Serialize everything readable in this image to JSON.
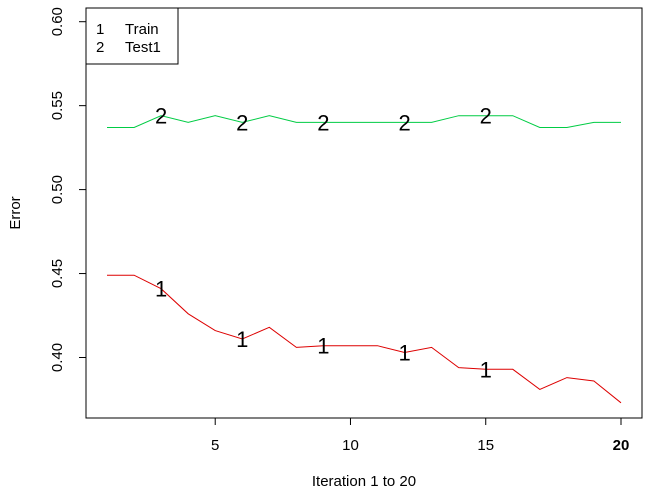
{
  "chart_data": {
    "type": "line",
    "title": "",
    "xlabel": "Iteration 1 to 20",
    "ylabel": "Error",
    "xlim": [
      1,
      20
    ],
    "ylim": [
      0.37,
      0.6
    ],
    "x": [
      1,
      2,
      3,
      4,
      5,
      6,
      7,
      8,
      9,
      10,
      11,
      12,
      13,
      14,
      15,
      16,
      17,
      18,
      19,
      20
    ],
    "x_ticks": [
      {
        "value": 5,
        "label": "5",
        "bold": false
      },
      {
        "value": 10,
        "label": "10",
        "bold": false
      },
      {
        "value": 15,
        "label": "15",
        "bold": false
      },
      {
        "value": 20,
        "label": "20",
        "bold": true
      }
    ],
    "y_ticks": [
      {
        "value": 0.4,
        "label": "0.40"
      },
      {
        "value": 0.45,
        "label": "0.45"
      },
      {
        "value": 0.5,
        "label": "0.50"
      },
      {
        "value": 0.55,
        "label": "0.55"
      },
      {
        "value": 0.6,
        "label": "0.60"
      }
    ],
    "series": [
      {
        "name": "Train",
        "marker_label": "1",
        "color": "#dd0000",
        "marker_at": [
          3,
          6,
          9,
          12,
          15
        ],
        "values": [
          0.449,
          0.449,
          0.441,
          0.426,
          0.416,
          0.411,
          0.418,
          0.406,
          0.407,
          0.407,
          0.407,
          0.403,
          0.406,
          0.394,
          0.393,
          0.393,
          0.381,
          0.388,
          0.386,
          0.373
        ]
      },
      {
        "name": "Test1",
        "marker_label": "2",
        "color": "#00cc44",
        "marker_at": [
          3,
          6,
          9,
          12,
          15
        ],
        "values": [
          0.537,
          0.537,
          0.544,
          0.54,
          0.544,
          0.54,
          0.544,
          0.54,
          0.54,
          0.54,
          0.54,
          0.54,
          0.54,
          0.544,
          0.544,
          0.544,
          0.537,
          0.537,
          0.54,
          0.54
        ]
      }
    ],
    "legend": {
      "placement": "top-left",
      "entries": [
        {
          "symbol": "1",
          "label": "Train"
        },
        {
          "symbol": "2",
          "label": "Test1"
        }
      ]
    },
    "grid": false
  }
}
